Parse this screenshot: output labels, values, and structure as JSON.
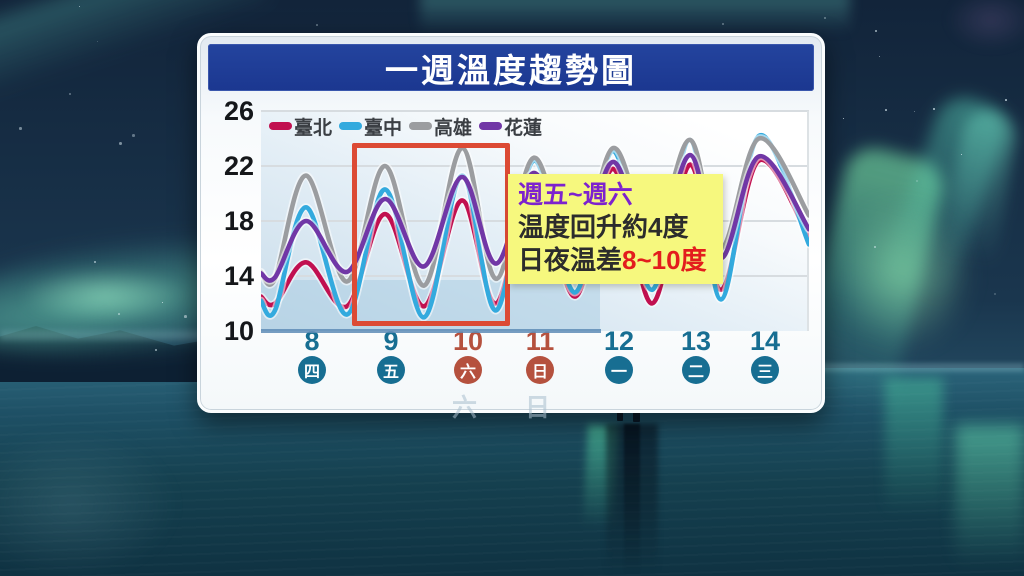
{
  "title": "一週溫度趨勢圖",
  "annotation": {
    "heading": "週五~週六",
    "line2": "温度回升約4度",
    "line3_text": "日夜温差",
    "line3_em": "8~10度"
  },
  "ghost_labels": [
    "六",
    "日"
  ],
  "colors": {
    "title_bar": "#1e3c96",
    "highlight_box": "#dc4a34",
    "note_bg": "#f6f87e",
    "note_heading": "#7d22ce",
    "note_em": "#e31d1d",
    "weekday_badge": "#176e92",
    "weekend_badge": "#b5513e",
    "axis_line": "#5e8cb6"
  },
  "chart_data": {
    "type": "line",
    "title": "一週溫度趨勢圖",
    "x_dates": [
      8,
      9,
      10,
      11,
      12,
      13,
      14
    ],
    "x_weekdays": [
      "四",
      "五",
      "六",
      "日",
      "一",
      "二",
      "三"
    ],
    "weekend_dates": [
      10,
      11
    ],
    "ylim": [
      10,
      26
    ],
    "yticks": [
      26,
      22,
      18,
      14,
      10
    ],
    "grid": "horizontal",
    "legend_position": "top-left-inside",
    "highlighted_dates": [
      9,
      10
    ],
    "series": [
      {
        "name": "臺北",
        "color": "#c11050",
        "daily_low": [
          12.0,
          11.8,
          11.8,
          12.0,
          12.5,
          12.0,
          13.0
        ],
        "daily_high": [
          15.0,
          18.5,
          19.5,
          21.3,
          21.8,
          22.1,
          22.4
        ],
        "edge_start": 12.5,
        "edge_end": 16.8
      },
      {
        "name": "臺中",
        "color": "#33aade",
        "daily_low": [
          11.5,
          11.2,
          11.0,
          11.5,
          12.8,
          13.0,
          12.3
        ],
        "daily_high": [
          19.0,
          20.3,
          21.3,
          22.4,
          23.1,
          23.9,
          24.2
        ],
        "edge_start": 12.2,
        "edge_end": 16.3
      },
      {
        "name": "高雄",
        "color": "#9b9da0",
        "daily_low": [
          13.8,
          13.6,
          13.3,
          13.8,
          14.8,
          16.8,
          16.0
        ],
        "daily_high": [
          21.3,
          22.0,
          23.3,
          22.6,
          23.3,
          23.9,
          24.0
        ],
        "edge_start": 14.3,
        "edge_end": 18.4
      },
      {
        "name": "花蓮",
        "color": "#7137a6",
        "daily_low": [
          13.9,
          14.3,
          14.7,
          14.9,
          15.0,
          15.4,
          15.3
        ],
        "daily_high": [
          18.0,
          19.6,
          21.2,
          21.5,
          22.3,
          22.8,
          22.7
        ],
        "edge_start": 14.2,
        "edge_end": 17.4
      }
    ]
  }
}
